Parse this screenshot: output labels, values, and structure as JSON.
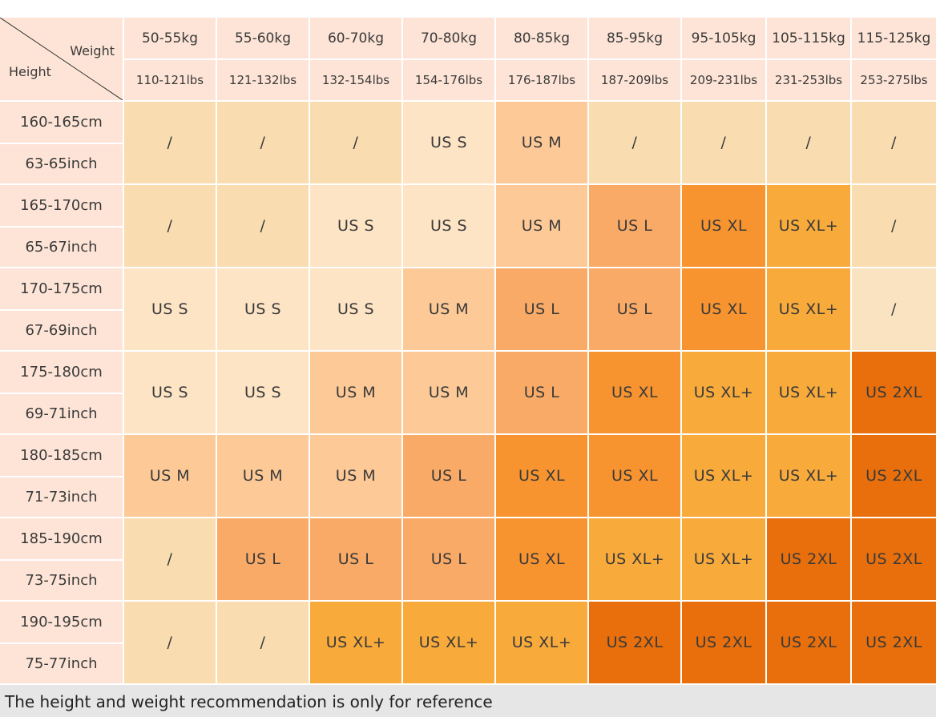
{
  "corner": {
    "weight": "Weight",
    "height": "Height"
  },
  "columns": [
    {
      "kg": "50-55kg",
      "lbs": "110-121lbs"
    },
    {
      "kg": "55-60kg",
      "lbs": "121-132lbs"
    },
    {
      "kg": "60-70kg",
      "lbs": "132-154lbs"
    },
    {
      "kg": "70-80kg",
      "lbs": "154-176lbs"
    },
    {
      "kg": "80-85kg",
      "lbs": "176-187lbs"
    },
    {
      "kg": "85-95kg",
      "lbs": "187-209lbs"
    },
    {
      "kg": "95-105kg",
      "lbs": "209-231lbs"
    },
    {
      "kg": "105-115kg",
      "lbs": "231-253lbs"
    },
    {
      "kg": "115-125kg",
      "lbs": "253-275lbs"
    }
  ],
  "rows": [
    {
      "cm": "160-165cm",
      "inch": "63-65inch",
      "cells": [
        {
          "text": "/",
          "color": "#f9dcb0"
        },
        {
          "text": "/",
          "color": "#f9dcb0"
        },
        {
          "text": "/",
          "color": "#f9dcb0"
        },
        {
          "text": "US S",
          "color": "#fde4c4"
        },
        {
          "text": "US M",
          "color": "#fcc997"
        },
        {
          "text": "/",
          "color": "#f9dcb0"
        },
        {
          "text": "/",
          "color": "#f9dcb0"
        },
        {
          "text": "/",
          "color": "#f9dcb0"
        },
        {
          "text": "/",
          "color": "#f9dcb0"
        }
      ]
    },
    {
      "cm": "165-170cm",
      "inch": "65-67inch",
      "cells": [
        {
          "text": "/",
          "color": "#f9dcb0"
        },
        {
          "text": "/",
          "color": "#f9dcb0"
        },
        {
          "text": "US S",
          "color": "#fde4c4"
        },
        {
          "text": "US S",
          "color": "#fde4c4"
        },
        {
          "text": "US M",
          "color": "#fcc997"
        },
        {
          "text": "US L",
          "color": "#f9aa66"
        },
        {
          "text": "US XL",
          "color": "#f79430"
        },
        {
          "text": "US XL+",
          "color": "#f8aa3a"
        },
        {
          "text": "/",
          "color": "#f9dcb0"
        }
      ]
    },
    {
      "cm": "170-175cm",
      "inch": "67-69inch",
      "cells": [
        {
          "text": "US S",
          "color": "#fde4c4"
        },
        {
          "text": "US S",
          "color": "#fde4c4"
        },
        {
          "text": "US S",
          "color": "#fde4c4"
        },
        {
          "text": "US M",
          "color": "#fcc997"
        },
        {
          "text": "US L",
          "color": "#f9aa66"
        },
        {
          "text": "US L",
          "color": "#f9aa66"
        },
        {
          "text": "US XL",
          "color": "#f79430"
        },
        {
          "text": "US XL+",
          "color": "#f8aa3a"
        },
        {
          "text": "/",
          "color": "#fae3c0"
        }
      ]
    },
    {
      "cm": "175-180cm",
      "inch": "69-71inch",
      "cells": [
        {
          "text": "US S",
          "color": "#fde4c4"
        },
        {
          "text": "US S",
          "color": "#fde4c4"
        },
        {
          "text": "US M",
          "color": "#fcc997"
        },
        {
          "text": "US M",
          "color": "#fcc997"
        },
        {
          "text": "US L",
          "color": "#f9aa66"
        },
        {
          "text": "US XL",
          "color": "#f79430"
        },
        {
          "text": "US XL+",
          "color": "#f8aa3a"
        },
        {
          "text": "US XL+",
          "color": "#f8aa3a"
        },
        {
          "text": "US 2XL",
          "color": "#e86f0b"
        }
      ]
    },
    {
      "cm": "180-185cm",
      "inch": "71-73inch",
      "cells": [
        {
          "text": "US M",
          "color": "#fcc997"
        },
        {
          "text": "US M",
          "color": "#fcc997"
        },
        {
          "text": "US M",
          "color": "#fcc997"
        },
        {
          "text": "US L",
          "color": "#f9aa66"
        },
        {
          "text": "US XL",
          "color": "#f79430"
        },
        {
          "text": "US XL",
          "color": "#f79430"
        },
        {
          "text": "US XL+",
          "color": "#f8aa3a"
        },
        {
          "text": "US XL+",
          "color": "#f8aa3a"
        },
        {
          "text": "US 2XL",
          "color": "#e86f0b"
        }
      ]
    },
    {
      "cm": "185-190cm",
      "inch": "73-75inch",
      "cells": [
        {
          "text": "/",
          "color": "#f9dcb0"
        },
        {
          "text": "US L",
          "color": "#f9aa66"
        },
        {
          "text": "US L",
          "color": "#f9aa66"
        },
        {
          "text": "US L",
          "color": "#f9aa66"
        },
        {
          "text": "US XL",
          "color": "#f79430"
        },
        {
          "text": "US XL+",
          "color": "#f8aa3a"
        },
        {
          "text": "US XL+",
          "color": "#f8aa3a"
        },
        {
          "text": "US 2XL",
          "color": "#e86f0b"
        },
        {
          "text": "US 2XL",
          "color": "#e86f0b"
        }
      ]
    },
    {
      "cm": "190-195cm",
      "inch": "75-77inch",
      "cells": [
        {
          "text": "/",
          "color": "#f9dcb0"
        },
        {
          "text": "/",
          "color": "#f9dcb0"
        },
        {
          "text": "US XL+",
          "color": "#f8aa3a"
        },
        {
          "text": "US XL+",
          "color": "#f8aa3a"
        },
        {
          "text": "US XL+",
          "color": "#f8aa3a"
        },
        {
          "text": "US 2XL",
          "color": "#e86f0b"
        },
        {
          "text": "US 2XL",
          "color": "#e86f0b"
        },
        {
          "text": "US 2XL",
          "color": "#e86f0b"
        },
        {
          "text": "US 2XL",
          "color": "#e86f0b"
        }
      ]
    }
  ],
  "footer": "The height and weight recommendation is only for reference"
}
